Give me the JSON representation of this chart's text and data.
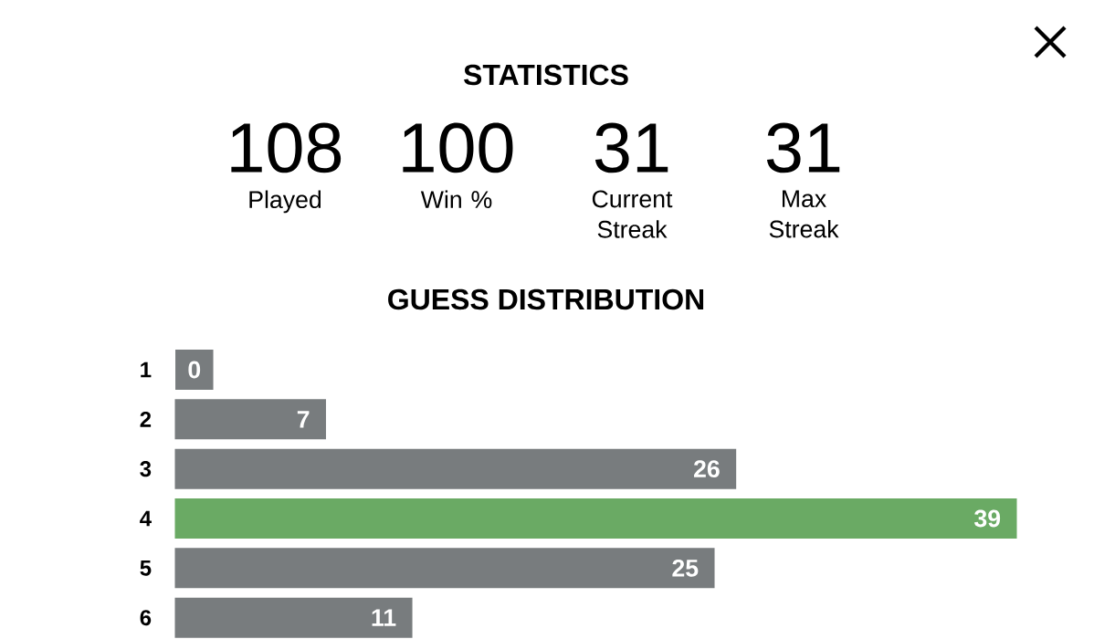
{
  "chart_data": {
    "type": "bar",
    "orientation": "horizontal",
    "title": "GUESS DISTRIBUTION",
    "categories": [
      "1",
      "2",
      "3",
      "4",
      "5",
      "6"
    ],
    "values": [
      0,
      7,
      26,
      39,
      25,
      11
    ],
    "colors": [
      "#787c7e",
      "#787c7e",
      "#787c7e",
      "#6aaa64",
      "#787c7e",
      "#787c7e"
    ],
    "data_labels": true,
    "annotations": [
      "STATISTICS",
      "108",
      "Played",
      "100",
      "Win %",
      "31",
      "Current Streak",
      "31",
      "Max Streak"
    ]
  }
}
